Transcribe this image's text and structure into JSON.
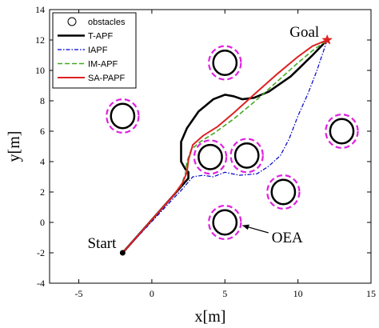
{
  "chart_data": {
    "type": "line",
    "title": "",
    "xlabel": "x[m]",
    "ylabel": "y[m]",
    "xlim": [
      -7,
      15
    ],
    "ylim": [
      -4,
      14
    ],
    "xticks": [
      -5,
      0,
      5,
      10,
      15
    ],
    "yticks": [
      -4,
      -2,
      0,
      2,
      4,
      6,
      8,
      10,
      12,
      14
    ],
    "grid": false,
    "legend": {
      "placement": "top-left",
      "entries": [
        "obstacles",
        "T-APF",
        "IAPF",
        "IM-APF",
        "SA-PAPF"
      ]
    },
    "colors": {
      "obstacle": "#000000",
      "obstacle_ring": "#e020e0",
      "t_apf": "#000000",
      "iapf": "#0000cc",
      "im_apf": "#44aa22",
      "sa_papf": "#dd2222",
      "goal": "#dd2222"
    },
    "obstacles": [
      {
        "x": -2,
        "y": 7
      },
      {
        "x": 5,
        "y": 10.5
      },
      {
        "x": 4,
        "y": 4.3
      },
      {
        "x": 6.5,
        "y": 4.4
      },
      {
        "x": 9,
        "y": 2
      },
      {
        "x": 13,
        "y": 6
      },
      {
        "x": 5,
        "y": 0
      }
    ],
    "obstacle_radius": 0.8,
    "ring_radius": 1.1,
    "series": [
      {
        "name": "T-APF",
        "points": [
          [
            -2,
            -2
          ],
          [
            1.5,
            1.8
          ],
          [
            2.5,
            2.9
          ],
          [
            2.5,
            3.3
          ],
          [
            2.3,
            3.5
          ],
          [
            2.0,
            4.0
          ],
          [
            2.0,
            5.3
          ],
          [
            2.4,
            6.2
          ],
          [
            3.2,
            7.3
          ],
          [
            4.2,
            8.1
          ],
          [
            5.0,
            8.4
          ],
          [
            5.6,
            8.3
          ],
          [
            6.2,
            8.1
          ],
          [
            7.0,
            8.2
          ],
          [
            8.0,
            8.6
          ],
          [
            9.5,
            9.6
          ],
          [
            11.0,
            11.0
          ],
          [
            12,
            12
          ]
        ]
      },
      {
        "name": "IAPF",
        "points": [
          [
            -2,
            -2
          ],
          [
            1.6,
            1.7
          ],
          [
            2.0,
            2.1
          ],
          [
            2.8,
            3.0
          ],
          [
            3.5,
            3.1
          ],
          [
            4.2,
            3.0
          ],
          [
            5.0,
            3.3
          ],
          [
            6.0,
            3.1
          ],
          [
            7.2,
            3.2
          ],
          [
            8.0,
            3.7
          ],
          [
            8.8,
            4.4
          ],
          [
            9.4,
            5.5
          ],
          [
            10.0,
            7.0
          ],
          [
            10.7,
            8.5
          ],
          [
            11.3,
            10.0
          ],
          [
            12,
            12
          ]
        ]
      },
      {
        "name": "IM-APF",
        "points": [
          [
            -2,
            -2
          ],
          [
            1.5,
            1.8
          ],
          [
            2.0,
            2.4
          ],
          [
            2.3,
            3.2
          ],
          [
            2.4,
            4.0
          ],
          [
            2.7,
            4.8
          ],
          [
            3.3,
            5.3
          ],
          [
            4.3,
            5.9
          ],
          [
            5.6,
            6.8
          ],
          [
            7.1,
            8.0
          ],
          [
            8.5,
            9.2
          ],
          [
            10.0,
            10.5
          ],
          [
            11.0,
            11.3
          ],
          [
            12,
            12
          ]
        ]
      },
      {
        "name": "SA-PAPF",
        "points": [
          [
            -2,
            -2
          ],
          [
            1.5,
            1.8
          ],
          [
            2.1,
            2.6
          ],
          [
            2.4,
            3.3
          ],
          [
            2.5,
            4.1
          ],
          [
            2.8,
            5.1
          ],
          [
            3.5,
            5.7
          ],
          [
            4.5,
            6.3
          ],
          [
            5.6,
            7.2
          ],
          [
            7.1,
            8.5
          ],
          [
            8.5,
            9.7
          ],
          [
            10.0,
            10.9
          ],
          [
            11.0,
            11.6
          ],
          [
            12,
            12
          ]
        ]
      }
    ],
    "start": {
      "x": -2,
      "y": -2,
      "label": "Start"
    },
    "goal": {
      "x": 12,
      "y": 12,
      "label": "Goal"
    },
    "oea_annotation": {
      "label": "OEA",
      "target": {
        "x": 6.2,
        "y": -0.2
      },
      "text_anchor": {
        "x": 8.2,
        "y": -1.0
      }
    }
  }
}
